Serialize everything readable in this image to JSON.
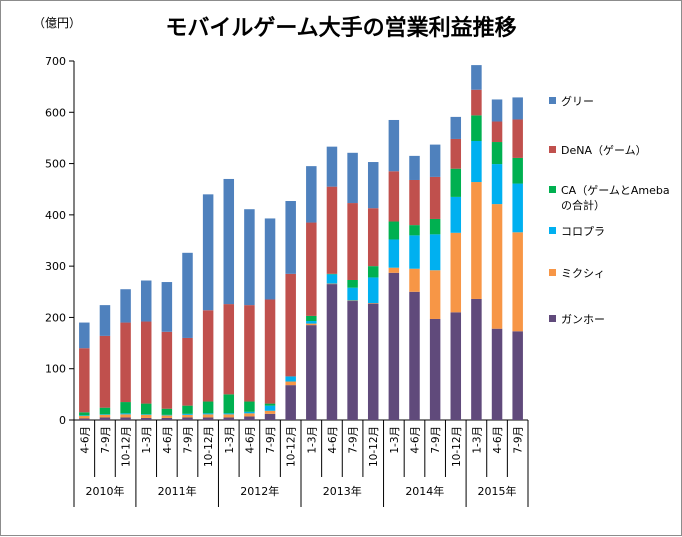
{
  "chart_data": {
    "type": "bar",
    "stacked": true,
    "title": "モバイルゲーム大手の営業利益推移",
    "unit_label": "（億円）",
    "ylim": [
      0,
      700
    ],
    "yticks": [
      0,
      100,
      200,
      300,
      400,
      500,
      600,
      700
    ],
    "grid": false,
    "legend_position": "right",
    "categories": [
      "4-6月",
      "7-9月",
      "10-12月",
      "1-3月",
      "4-6月",
      "7-9月",
      "10-12月",
      "1-3月",
      "4-6月",
      "7-9月",
      "10-12月",
      "1-3月",
      "4-6月",
      "7-9月",
      "10-12月",
      "1-3月",
      "4-6月",
      "7-9月",
      "10-12月",
      "1-3月",
      "4-6月",
      "7-9月"
    ],
    "year_groups": [
      {
        "label": "2010年",
        "count": 3
      },
      {
        "label": "2011年",
        "count": 4
      },
      {
        "label": "2012年",
        "count": 4
      },
      {
        "label": "2013年",
        "count": 4
      },
      {
        "label": "2014年",
        "count": 4
      },
      {
        "label": "2015年",
        "count": 3
      }
    ],
    "series": [
      {
        "name": "ガンホー",
        "color": "#604a7b",
        "values": [
          3,
          5,
          5,
          4,
          4,
          5,
          5,
          5,
          7,
          12,
          68,
          185,
          265,
          232,
          227,
          287,
          250,
          197,
          210,
          236,
          178,
          173
        ]
      },
      {
        "name": "ミクシィ",
        "color": "#f79646",
        "values": [
          5,
          5,
          6,
          6,
          5,
          5,
          6,
          6,
          6,
          6,
          7,
          3,
          1,
          1,
          1,
          10,
          45,
          95,
          155,
          228,
          243,
          193
        ]
      },
      {
        "name": "コロプラ",
        "color": "#00b0f0",
        "values": [
          1,
          1,
          2,
          1,
          1,
          2,
          2,
          2,
          3,
          10,
          10,
          5,
          18,
          25,
          50,
          55,
          65,
          70,
          70,
          80,
          78,
          95
        ]
      },
      {
        "name": "CA（ゲームとAmebaの合計）",
        "color": "#00b050",
        "values": [
          6,
          13,
          22,
          21,
          12,
          16,
          23,
          37,
          20,
          4,
          0,
          10,
          1,
          15,
          22,
          35,
          20,
          30,
          55,
          50,
          43,
          50
        ]
      },
      {
        "name": "DeNA（ゲーム）",
        "color": "#c0504d",
        "values": [
          125,
          140,
          155,
          160,
          150,
          132,
          178,
          176,
          188,
          203,
          200,
          182,
          170,
          150,
          113,
          98,
          88,
          82,
          58,
          50,
          40,
          75
        ]
      },
      {
        "name": "グリー",
        "color": "#4f81bd",
        "values": [
          50,
          60,
          65,
          80,
          97,
          166,
          226,
          244,
          187,
          158,
          142,
          110,
          78,
          98,
          90,
          100,
          47,
          63,
          43,
          48,
          43,
          43
        ]
      }
    ],
    "legend_order": [
      "グリー",
      "DeNA（ゲーム）",
      "CA（ゲームとAmebaの合計）",
      "コロプラ",
      "ミクシィ",
      "ガンホー"
    ],
    "legend_lines": {
      "CA（ゲームとAmebaの合計）": [
        "CA（ゲームとAmeba",
        "の合計）"
      ]
    }
  }
}
